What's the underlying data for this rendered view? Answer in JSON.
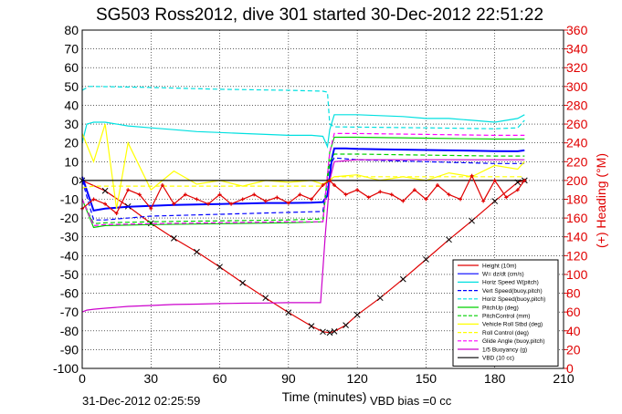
{
  "chart_data": {
    "type": "line",
    "title": "SG503 Ross2012, dive 301 started 30-Dec-2012 22:51:22",
    "xlabel": "Time (minutes)",
    "ylabel": "",
    "ylabel_right": "(+) Heading (°M)",
    "xlim": [
      0,
      210
    ],
    "ylim": [
      -100,
      80
    ],
    "ylim_right": [
      0,
      360
    ],
    "xticks": [
      "0",
      "30",
      "60",
      "90",
      "120",
      "150",
      "180",
      "210"
    ],
    "yticks": [
      "80",
      "70",
      "60",
      "50",
      "40",
      "30",
      "20",
      "10",
      "0",
      "-10",
      "-20",
      "-30",
      "-40",
      "-50",
      "-60",
      "-70",
      "-80",
      "-90",
      "-100"
    ],
    "yticks_right": [
      "360",
      "340",
      "320",
      "300",
      "280",
      "260",
      "240",
      "220",
      "200",
      "180",
      "160",
      "140",
      "120",
      "100",
      "80",
      "60",
      "40",
      "20",
      "0"
    ],
    "grid": true,
    "legend_position": "bottom-right",
    "footer_left": "31-Dec-2012 02:25:59",
    "footer_center": "VBD bias =0 cc",
    "series": [
      {
        "name": "Height (10m)",
        "color": "#e00000",
        "style": "solid",
        "x": [
          0,
          10,
          20,
          30,
          40,
          50,
          60,
          70,
          80,
          90,
          100,
          105,
          108,
          110,
          115,
          120,
          130,
          140,
          150,
          160,
          170,
          180,
          190,
          193
        ],
        "y": [
          0,
          -5.5,
          -13.8,
          -22.8,
          -30.8,
          -38,
          -46,
          -54.5,
          -62.5,
          -70.3,
          -77.5,
          -80.5,
          -81,
          -80.3,
          -77,
          -71.5,
          -62.5,
          -52.5,
          -42,
          -31.5,
          -21.5,
          -11,
          -1,
          0
        ]
      },
      {
        "name": "W= dz/dt (cm/s)",
        "color": "#0000ff",
        "style": "solid",
        "x": [
          0,
          5,
          10,
          20,
          30,
          40,
          50,
          60,
          70,
          80,
          90,
          100,
          105,
          107,
          109,
          110,
          115,
          120,
          130,
          140,
          150,
          160,
          170,
          180,
          190,
          193
        ],
        "y": [
          2,
          -16,
          -15,
          -14,
          -13.5,
          -13,
          -12.8,
          -12.5,
          -12.3,
          -12,
          -12,
          -11.8,
          -11.5,
          -8,
          12,
          17,
          17,
          16.8,
          16.6,
          16.4,
          16.2,
          16,
          15.8,
          15.6,
          15.5,
          16
        ]
      },
      {
        "name": "Horiz Speed W(pitch)",
        "color": "#00e0e0",
        "style": "solid",
        "x": [
          0,
          2,
          5,
          10,
          20,
          30,
          40,
          50,
          60,
          70,
          80,
          90,
          100,
          105,
          107,
          108,
          110,
          115,
          120,
          130,
          140,
          150,
          160,
          170,
          180,
          190,
          193
        ],
        "y": [
          20,
          30,
          31,
          31,
          29,
          28,
          27,
          26,
          25.5,
          25,
          24.5,
          24,
          24,
          23.5,
          18,
          27,
          35,
          35,
          35,
          34.5,
          34,
          33,
          33,
          32,
          31,
          33,
          35
        ]
      },
      {
        "name": "Vert Speed(buoy,pitch)",
        "color": "#0000ff",
        "style": "dashed",
        "x": [
          0,
          5,
          10,
          30,
          60,
          90,
          105,
          108,
          110,
          120,
          150,
          180,
          193
        ],
        "y": [
          0,
          -21,
          -21,
          -19,
          -18,
          -17,
          -16.5,
          8,
          12,
          11,
          10,
          9,
          9
        ]
      },
      {
        "name": "Horiz Speed(buoy,pitch)",
        "color": "#00e0e0",
        "style": "dashed",
        "x": [
          0,
          3,
          5,
          30,
          60,
          90,
          105,
          107,
          108,
          110,
          150,
          180,
          190,
          193
        ],
        "y": [
          48,
          50,
          50,
          49.5,
          48.5,
          48,
          47.5,
          47,
          30,
          28.5,
          28,
          27.5,
          28,
          32
        ]
      },
      {
        "name": "PitchUp (deg)",
        "color": "#00d000",
        "style": "solid",
        "x": [
          0,
          5,
          10,
          30,
          60,
          90,
          105,
          108,
          110,
          120,
          150,
          180,
          193
        ],
        "y": [
          -10,
          -25,
          -24,
          -23.5,
          -23,
          -22.5,
          -22,
          15,
          23,
          23,
          22.5,
          22,
          22
        ]
      },
      {
        "name": "PitchControl (mm)",
        "color": "#00d000",
        "style": "dashed",
        "x": [
          0,
          5,
          10,
          30,
          60,
          90,
          105,
          108,
          110,
          120,
          150,
          180,
          193
        ],
        "y": [
          -10,
          -23,
          -22.5,
          -22,
          -21.5,
          -21,
          -20.5,
          10,
          14,
          14,
          13.5,
          13,
          13
        ]
      },
      {
        "name": "Vehicle Roll Stbd (deg)",
        "color": "#ffff00",
        "style": "solid",
        "x": [
          0,
          5,
          10,
          15,
          20,
          30,
          40,
          50,
          60,
          70,
          80,
          90,
          100,
          105,
          110,
          120,
          130,
          140,
          150,
          160,
          170,
          180,
          190,
          193
        ],
        "y": [
          25,
          10,
          30,
          -15,
          20,
          -5,
          5,
          -2,
          0,
          -3,
          0,
          -1,
          0,
          -2,
          2,
          3,
          0,
          2,
          0,
          4,
          2,
          8,
          6,
          10
        ]
      },
      {
        "name": "Roll Control (deg)",
        "color": "#ffff00",
        "style": "dashed",
        "x": [
          0,
          5,
          10,
          30,
          60,
          90,
          105,
          108,
          110,
          150,
          193
        ],
        "y": [
          -4,
          -3,
          -3,
          -3,
          -3,
          -3,
          -3,
          0,
          2,
          2,
          2
        ]
      },
      {
        "name": "Glide Angle (buoy,pitch)",
        "color": "#ff00ff",
        "style": "dashed",
        "x": [
          0,
          5,
          10,
          30,
          60,
          90,
          105,
          108,
          110,
          120,
          150,
          180,
          193
        ],
        "y": [
          -10,
          -24,
          -23.5,
          -23,
          -22.5,
          -22,
          -22,
          15,
          25,
          25,
          24.5,
          24,
          24
        ]
      },
      {
        "name": "1/5 Buoyancy (g)",
        "color": "#cc00cc",
        "style": "solid",
        "x": [
          0,
          2,
          5,
          10,
          20,
          30,
          40,
          50,
          60,
          70,
          80,
          90,
          100,
          104,
          106,
          108,
          110,
          120,
          150,
          180,
          193
        ],
        "y": [
          -70,
          -69,
          -68.5,
          -68,
          -67,
          -66.5,
          -66,
          -65.8,
          -65.5,
          -65.3,
          -65.2,
          -65,
          -65,
          -65,
          -30,
          0,
          10,
          11,
          11,
          11,
          11
        ]
      },
      {
        "name": "VBD (10 cc)",
        "color": "#000000",
        "style": "solid",
        "x": [
          0,
          193
        ],
        "y": [
          0,
          0
        ]
      },
      {
        "name": "Heading (°M)",
        "axis": "right",
        "color": "#e00000",
        "style": "marker-plus",
        "x": [
          0,
          5,
          10,
          15,
          20,
          25,
          30,
          35,
          40,
          45,
          50,
          55,
          60,
          65,
          70,
          75,
          80,
          85,
          90,
          95,
          100,
          105,
          108,
          110,
          115,
          120,
          125,
          130,
          135,
          140,
          145,
          150,
          155,
          160,
          165,
          170,
          175,
          180,
          185,
          190,
          193
        ],
        "y": [
          170,
          180,
          175,
          165,
          190,
          185,
          170,
          195,
          175,
          185,
          180,
          175,
          185,
          175,
          180,
          185,
          178,
          182,
          176,
          185,
          180,
          195,
          200,
          195,
          185,
          190,
          182,
          188,
          185,
          178,
          190,
          180,
          195,
          185,
          180,
          205,
          178,
          200,
          182,
          190,
          200
        ]
      }
    ]
  }
}
